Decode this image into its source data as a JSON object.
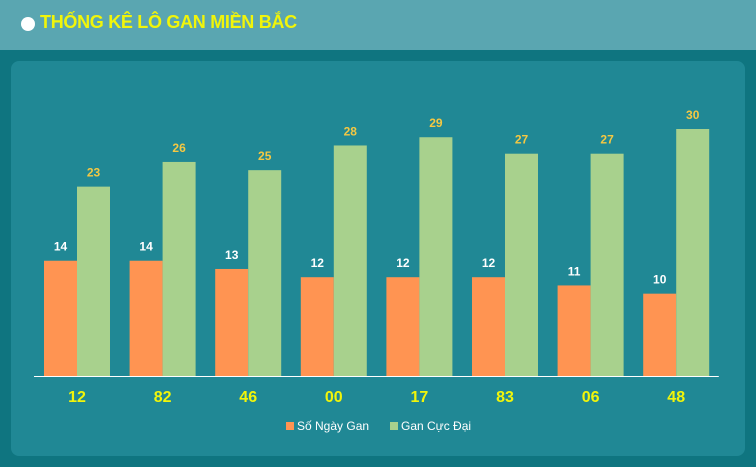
{
  "header": {
    "title": "THỐNG KÊ LÔ GAN MIỀN BẮC"
  },
  "colors": {
    "series1": "#ff9452",
    "series2": "#a8d18d",
    "category_label": "#f1f50a",
    "data_label": "#f5c842",
    "data_label_small": "#ffffff",
    "legend_text": "#ffffff"
  },
  "chart_data": {
    "type": "bar",
    "categories": [
      "12",
      "82",
      "46",
      "00",
      "17",
      "83",
      "06",
      "48"
    ],
    "series": [
      {
        "name": "Số Ngày Gan",
        "values": [
          14,
          14,
          13,
          12,
          12,
          12,
          11,
          10
        ]
      },
      {
        "name": "Gan Cực Đại",
        "values": [
          23,
          26,
          25,
          28,
          29,
          27,
          27,
          30
        ]
      }
    ],
    "title": "THỐNG KÊ LÔ GAN MIỀN BẮC",
    "xlabel": "",
    "ylabel": "",
    "ylim": [
      0,
      30
    ],
    "grid": false,
    "legend": "bottom-center"
  }
}
